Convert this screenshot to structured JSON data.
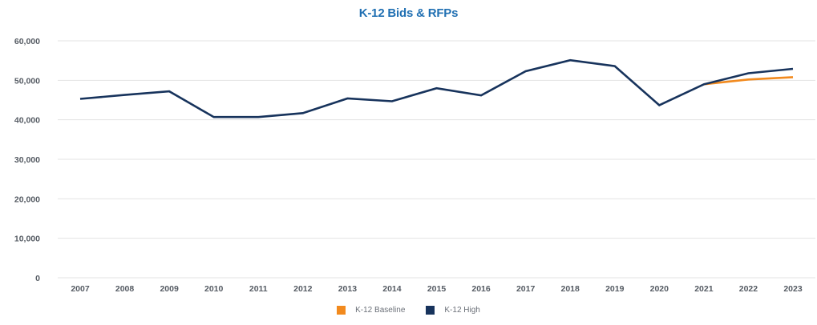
{
  "chart_data": {
    "type": "line",
    "title": "K-12 Bids & RFPs",
    "xlabel": "",
    "ylabel": "",
    "x": [
      "2007",
      "2008",
      "2009",
      "2010",
      "2011",
      "2012",
      "2013",
      "2014",
      "2015",
      "2016",
      "2017",
      "2018",
      "2019",
      "2020",
      "2021",
      "2022",
      "2023"
    ],
    "ylim": [
      0,
      60000
    ],
    "yticks": [
      0,
      10000,
      20000,
      30000,
      40000,
      50000,
      60000
    ],
    "ytick_labels": [
      "0",
      "10,000",
      "20,000",
      "30,000",
      "40,000",
      "50,000",
      "60,000"
    ],
    "grid": true,
    "legend_position": "bottom",
    "series": [
      {
        "name": "K-12 Baseline",
        "color": "#f28a1e",
        "values": [
          null,
          null,
          null,
          null,
          null,
          null,
          null,
          null,
          null,
          null,
          null,
          null,
          null,
          null,
          49000,
          50200,
          50800
        ]
      },
      {
        "name": "K-12 High",
        "color": "#17335c",
        "values": [
          45300,
          46300,
          47200,
          40700,
          40700,
          41700,
          45400,
          44700,
          48000,
          46200,
          52300,
          55100,
          53600,
          43700,
          49000,
          51800,
          52900
        ]
      }
    ]
  }
}
